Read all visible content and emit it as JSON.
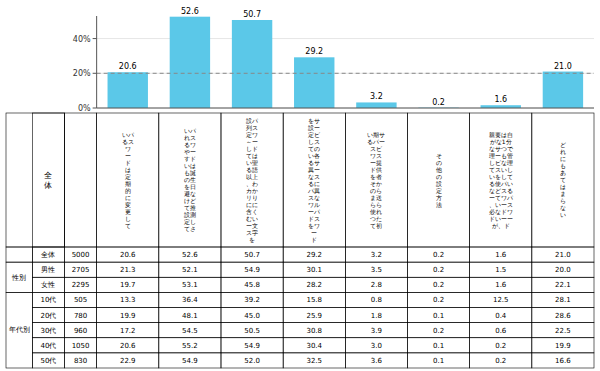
{
  "chart_data": {
    "type": "bar",
    "categories": [
      "いパ\nるス\nワ\nー\nド\nは\n定\n期\n的\nに\n変\n更\nし\nて",
      "いパ\nれス\nるワ\nやー\nすド\nいは\nも誕\nの生\nを日\n避な\nけど\nて推\n設測\n定し\nてさ",
      "設パ\n列ス\n定ワ\n～ー\nしド\nては\nい聖\nる語\n以上\n、わ\nカか\nリり\nにに\n含く\nむい\nー文\nス字\nを",
      "をサ\n設ー\n定ビ\nしス\nての\nい各\nるサ\n異ー\nなス\nるに\nパ異\nスな\nワル\nーパ\nドス\nをワ\nー\nド",
      "い期サ\nるパー\nスビ\nワス\nー提\nド供\nを者\nそか\nのら\nま送\nらら\n使れ\nつた\nて初",
      "そ\nの\n他\nの\n設\n定\n方\n法",
      "親要は自\nがな1分\nなサつで\n理ーも管\nしビな理\nてスいし\nいをして\nる使パい\nなどスる\nーてワパ\n、いース\n必なドワ\nドいーー\nが、ド",
      "ど\nれ\nに\nも\nあ\nて\nは\nま\nら\nな\nい"
    ],
    "values": [
      20.6,
      52.6,
      50.7,
      29.2,
      3.2,
      0.2,
      1.6,
      21.0
    ],
    "value_labels": [
      "20.6",
      "52.6",
      "50.7",
      "29.2",
      "3.2",
      "0.2",
      "1.6",
      "21.0"
    ],
    "data_labels": true,
    "color": "#5BC8E8",
    "reference_line": 20,
    "ylim": [
      0,
      53
    ],
    "yticks": [
      {
        "value": 0,
        "label": "0%"
      },
      {
        "value": 20,
        "label": "20%"
      },
      {
        "value": 40,
        "label": "40%"
      }
    ],
    "table": {
      "corner": "全\n体",
      "groups": [
        {
          "rows": [
            {
              "label": "全体",
              "n": "5000",
              "values": [
                "20.6",
                "52.6",
                "50.7",
                "29.2",
                "3.2",
                "0.2",
                "1.6",
                "21.0"
              ]
            }
          ]
        },
        {
          "label": "性別",
          "rows": [
            {
              "label": "男性",
              "n": "2705",
              "values": [
                "21.3",
                "52.1",
                "54.9",
                "30.1",
                "3.5",
                "0.2",
                "1.5",
                "20.0"
              ]
            },
            {
              "label": "女性",
              "n": "2295",
              "values": [
                "19.7",
                "53.1",
                "45.8",
                "28.2",
                "2.8",
                "0.2",
                "1.6",
                "22.1"
              ]
            }
          ]
        },
        {
          "label": "年代別",
          "rows": [
            {
              "label": "10代",
              "n": "505",
              "values": [
                "13.3",
                "36.4",
                "39.2",
                "15.8",
                "0.8",
                "0.2",
                "12.5",
                "28.1"
              ]
            },
            {
              "label": "20代",
              "n": "780",
              "values": [
                "19.9",
                "48.1",
                "45.0",
                "25.9",
                "1.8",
                "0.1",
                "0.4",
                "28.6"
              ]
            },
            {
              "label": "30代",
              "n": "960",
              "values": [
                "17.2",
                "54.5",
                "50.5",
                "30.8",
                "3.9",
                "0.2",
                "0.6",
                "22.5"
              ]
            },
            {
              "label": "40代",
              "n": "1050",
              "values": [
                "20.6",
                "55.2",
                "54.9",
                "30.4",
                "3.0",
                "0.1",
                "0.2",
                "19.9"
              ]
            },
            {
              "label": "50代",
              "n": "830",
              "values": [
                "22.9",
                "54.9",
                "52.0",
                "32.5",
                "3.6",
                "0.1",
                "0.2",
                "16.6"
              ]
            }
          ]
        }
      ]
    }
  }
}
